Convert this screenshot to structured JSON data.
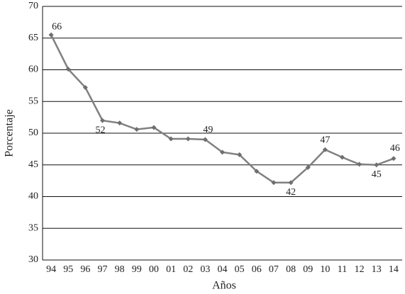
{
  "chart_data": {
    "type": "line",
    "x_label": "Años",
    "y_label": "Porcentaje",
    "categories": [
      "94",
      "95",
      "96",
      "97",
      "98",
      "99",
      "00",
      "01",
      "02",
      "03",
      "04",
      "05",
      "06",
      "07",
      "08",
      "09",
      "10",
      "11",
      "12",
      "13",
      "14"
    ],
    "values": [
      65.5,
      60.1,
      57.2,
      52.0,
      51.6,
      50.6,
      50.9,
      49.1,
      49.1,
      49.0,
      47.0,
      46.6,
      44.0,
      42.2,
      42.2,
      44.6,
      47.4,
      46.2,
      45.1,
      45.0,
      46.0
    ],
    "value_labels": [
      "66",
      null,
      null,
      "52",
      null,
      null,
      null,
      null,
      null,
      "49",
      null,
      null,
      null,
      null,
      "42",
      null,
      "47",
      null,
      null,
      "45",
      "46"
    ],
    "color": "#808080",
    "ylim": [
      30,
      70
    ],
    "yticks": [
      30,
      35,
      40,
      45,
      50,
      55,
      60,
      65,
      70
    ],
    "grid": true
  }
}
